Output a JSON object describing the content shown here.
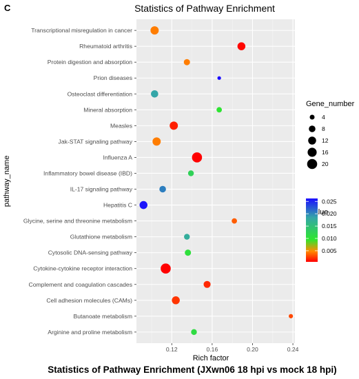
{
  "panel_letter": "C",
  "caption": "Statistics of Pathway Enrichment (JXwn06 18 hpi vs mock 18 hpi)",
  "colors": {
    "panel_bg": "#ebebeb",
    "grid_major": "#ffffff",
    "grid_minor": "#f5f5f5",
    "pvalue_high": "#1b0dff",
    "pvalue_mid_high": "#34a6a8",
    "pvalue_mid": "#2ee62e",
    "pvalue_low": "#ff0000"
  },
  "chart_data": {
    "type": "scatter",
    "title": "Statistics of Pathway Enrichment",
    "xlabel": "Rich factor",
    "ylabel": "pathway_name",
    "xlim": [
      0.085,
      0.242
    ],
    "xticks": [
      0.12,
      0.16,
      0.2,
      0.24
    ],
    "xtick_labels": [
      "0.12",
      "0.16",
      "0.20",
      "0.24"
    ],
    "grid": true,
    "size_legend": {
      "title": "Gene_number",
      "values": [
        4,
        8,
        12,
        16,
        20
      ],
      "labels": [
        "4",
        "8",
        "12",
        "16",
        "20"
      ],
      "size_range": [
        2,
        20
      ]
    },
    "color_legend": {
      "title": "pvalue",
      "scale": "continuous",
      "min": 0.0005,
      "max": 0.0262,
      "ticks": [
        0.005,
        0.01,
        0.015,
        0.02,
        0.025
      ],
      "tick_labels": [
        "0.005",
        "0.010",
        "0.015",
        "0.020",
        "0.025"
      ]
    },
    "points": [
      {
        "pathway": "Transcriptional misregulation in cancer",
        "rich_factor": 0.103,
        "gene_number": 13,
        "pvalue": 0.0045
      },
      {
        "pathway": "Rheumatoid arthritis",
        "rich_factor": 0.189,
        "gene_number": 12,
        "pvalue": 0.0007
      },
      {
        "pathway": "Protein digestion and absorption",
        "rich_factor": 0.135,
        "gene_number": 7,
        "pvalue": 0.0045
      },
      {
        "pathway": "Prion diseases",
        "rich_factor": 0.167,
        "gene_number": 2,
        "pvalue": 0.0262
      },
      {
        "pathway": "Osteoclast differentiation",
        "rich_factor": 0.103,
        "gene_number": 10,
        "pvalue": 0.0185
      },
      {
        "pathway": "Mineral absorption",
        "rich_factor": 0.167,
        "gene_number": 5,
        "pvalue": 0.0098
      },
      {
        "pathway": "Measles",
        "rich_factor": 0.122,
        "gene_number": 13,
        "pvalue": 0.0015
      },
      {
        "pathway": "Jak-STAT signaling pathway",
        "rich_factor": 0.105,
        "gene_number": 13,
        "pvalue": 0.0045
      },
      {
        "pathway": "Influenza A",
        "rich_factor": 0.145,
        "gene_number": 20,
        "pvalue": 0.0005
      },
      {
        "pathway": "Inflammatory bowel disease (IBD)",
        "rich_factor": 0.139,
        "gene_number": 6,
        "pvalue": 0.0125
      },
      {
        "pathway": "IL-17 signaling pathway",
        "rich_factor": 0.111,
        "gene_number": 8,
        "pvalue": 0.0205
      },
      {
        "pathway": "Hepatitis C",
        "rich_factor": 0.092,
        "gene_number": 12,
        "pvalue": 0.0258
      },
      {
        "pathway": "Glycine, serine and threonine metabolism",
        "rich_factor": 0.182,
        "gene_number": 5,
        "pvalue": 0.0035
      },
      {
        "pathway": "Glutathione metabolism",
        "rich_factor": 0.135,
        "gene_number": 6,
        "pvalue": 0.0175
      },
      {
        "pathway": "Cytosolic DNA-sensing pathway",
        "rich_factor": 0.136,
        "gene_number": 7,
        "pvalue": 0.0105
      },
      {
        "pathway": "Cytokine-cytokine receptor interaction",
        "rich_factor": 0.114,
        "gene_number": 20,
        "pvalue": 0.0005
      },
      {
        "pathway": "Complement and coagulation cascades",
        "rich_factor": 0.155,
        "gene_number": 9,
        "pvalue": 0.0018
      },
      {
        "pathway": "Cell adhesion molecules (CAMs)",
        "rich_factor": 0.124,
        "gene_number": 12,
        "pvalue": 0.0022
      },
      {
        "pathway": "Butanoate metabolism",
        "rich_factor": 0.238,
        "gene_number": 3,
        "pvalue": 0.0028
      },
      {
        "pathway": "Arginine and proline metabolism",
        "rich_factor": 0.142,
        "gene_number": 6,
        "pvalue": 0.011
      }
    ]
  }
}
